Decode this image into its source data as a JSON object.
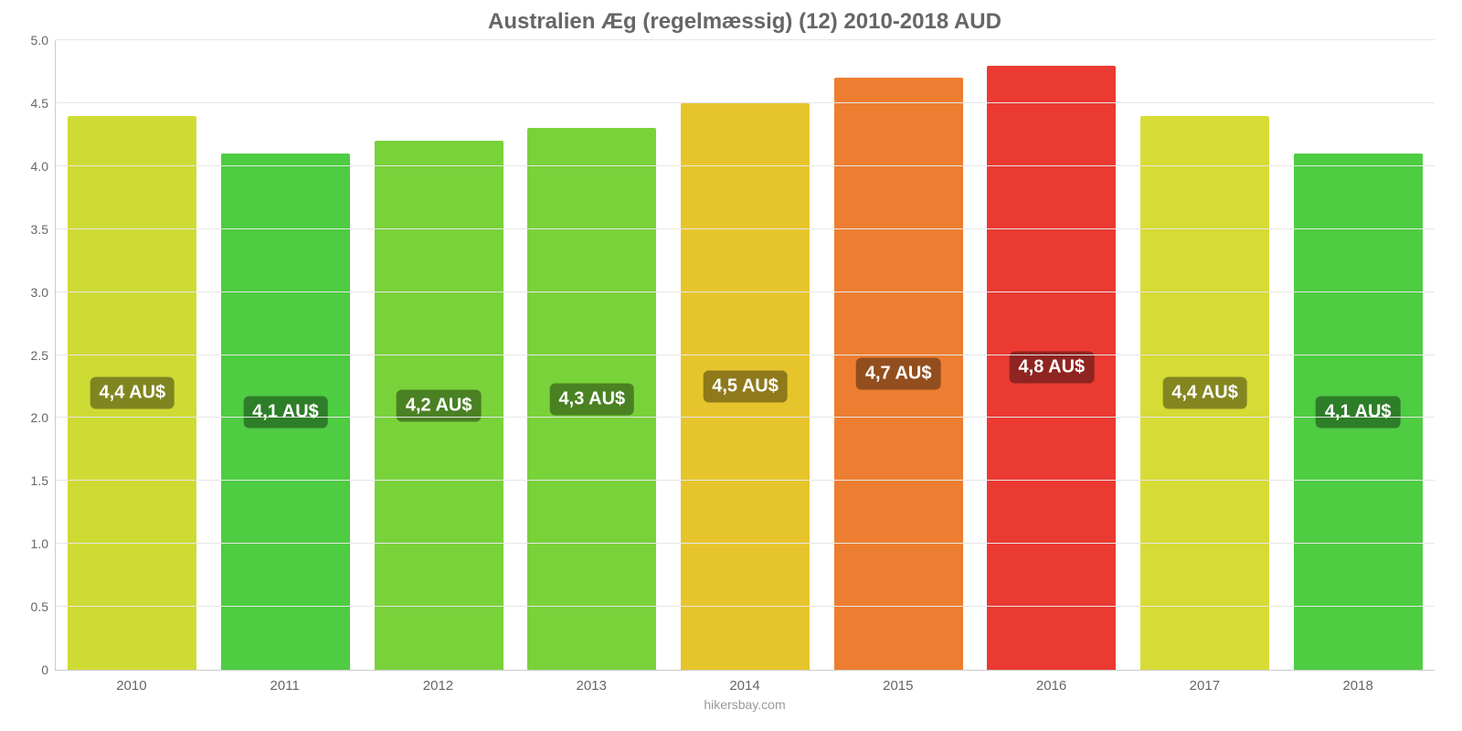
{
  "chart": {
    "type": "bar",
    "title": "Australien Æg (regelmæssig) (12) 2010-2018 AUD",
    "title_fontsize": 24,
    "title_color": "#666666",
    "background_color": "#ffffff",
    "grid_color": "#e6e6e6",
    "axis_color": "#cccccc",
    "label_color": "#666666",
    "label_fontsize": 14,
    "ylim_min": 0,
    "ylim_max": 5.0,
    "yticks": [
      "0",
      "0.5",
      "1.0",
      "1.5",
      "2.0",
      "2.5",
      "3.0",
      "3.5",
      "4.0",
      "4.5",
      "5.0"
    ],
    "ytick_values": [
      0,
      0.5,
      1.0,
      1.5,
      2.0,
      2.5,
      3.0,
      3.5,
      4.0,
      4.5,
      5.0
    ],
    "bar_width_pct": 84,
    "categories": [
      "2010",
      "2011",
      "2012",
      "2013",
      "2014",
      "2015",
      "2016",
      "2017",
      "2018"
    ],
    "values": [
      4.4,
      4.1,
      4.2,
      4.3,
      4.5,
      4.7,
      4.8,
      4.4,
      4.1
    ],
    "value_labels": [
      "4,4 AU$",
      "4,1 AU$",
      "4,2 AU$",
      "4,3 AU$",
      "4,5 AU$",
      "4,7 AU$",
      "4,8 AU$",
      "4,4 AU$",
      "4,1 AU$"
    ],
    "bar_colors": [
      "#cfdb35",
      "#4ecc42",
      "#79d23a",
      "#79d23a",
      "#e6c52c",
      "#ed7e31",
      "#ea3a32",
      "#d6db35",
      "#4ecc42"
    ],
    "badge_bg_colors": [
      "#7f8620",
      "#2e7d28",
      "#4a8123",
      "#4a8123",
      "#8e7a1b",
      "#924e1e",
      "#902420",
      "#848620",
      "#2e7d28"
    ],
    "badge_fontsize": 20,
    "credit": "hikersbay.com",
    "credit_color": "#999999"
  }
}
